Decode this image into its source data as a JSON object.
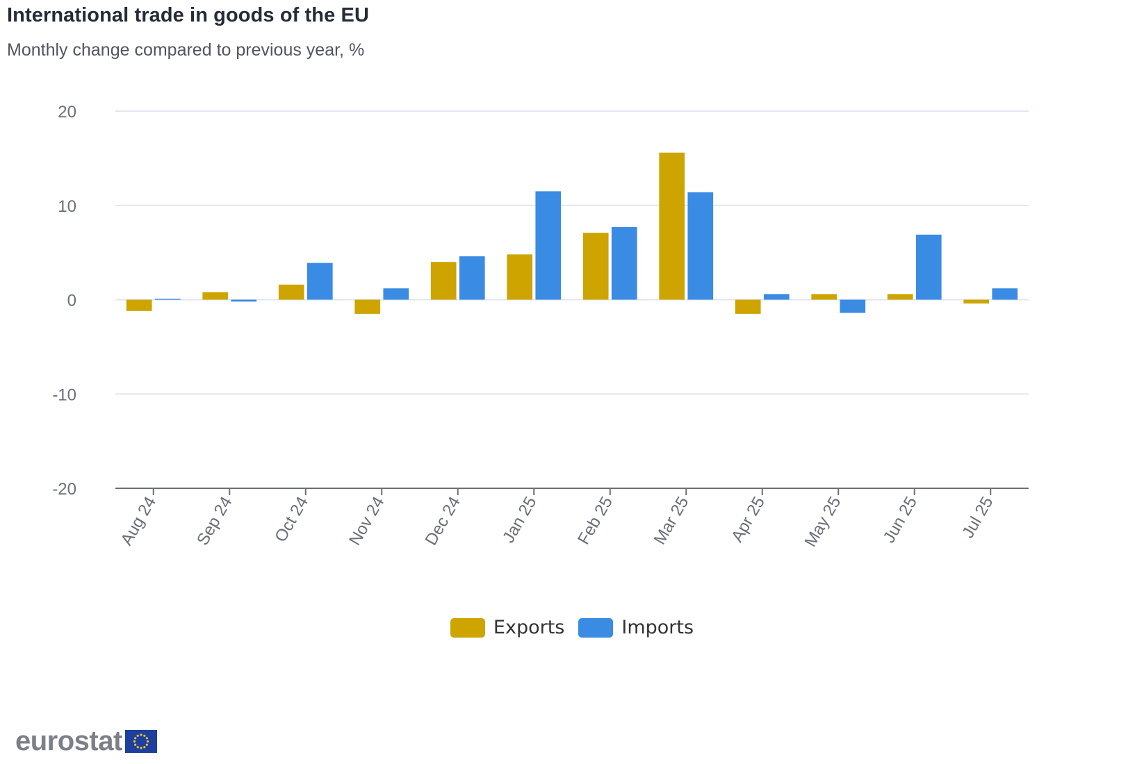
{
  "header": {
    "title": "International trade in goods of the EU",
    "subtitle": "Monthly change compared to previous year, %"
  },
  "logo": {
    "text": "eurostat",
    "flag_icon": "eu-flag-icon"
  },
  "colors": {
    "exports": "#cda400",
    "imports": "#3a8be3",
    "grid": "#e1e5f0",
    "axis": "#6a6e78"
  },
  "chart_data": {
    "type": "bar",
    "title": "International trade in goods of the EU",
    "subtitle": "Monthly change compared to previous year, %",
    "xlabel": "",
    "ylabel": "",
    "categories": [
      "Aug 24",
      "Sep 24",
      "Oct 24",
      "Nov 24",
      "Dec 24",
      "Jan 25",
      "Feb 25",
      "Mar 25",
      "Apr 25",
      "May 25",
      "Jun 25",
      "Jul 25"
    ],
    "series": [
      {
        "name": "Exports",
        "color": "#cda400",
        "values": [
          -1.2,
          0.8,
          1.6,
          -1.5,
          4.0,
          4.8,
          7.1,
          15.6,
          -1.5,
          0.6,
          0.6,
          -0.4
        ]
      },
      {
        "name": "Imports",
        "color": "#3a8be3",
        "values": [
          0.1,
          -0.2,
          3.9,
          1.2,
          4.6,
          11.5,
          7.7,
          11.4,
          0.6,
          -1.4,
          6.9,
          1.2
        ]
      }
    ],
    "ylim": [
      -20,
      20
    ],
    "yticks": [
      20,
      10,
      0,
      -10,
      -20
    ],
    "ytick_labels": [
      "20",
      "10",
      "0",
      "-10",
      "-20"
    ],
    "grid": true,
    "legend": "bottom-center",
    "xtick_rotation_deg": -60
  }
}
